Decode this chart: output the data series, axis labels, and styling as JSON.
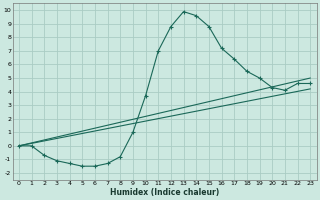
{
  "xlabel": "Humidex (Indice chaleur)",
  "background_color": "#cce8e0",
  "grid_color": "#aaccC4",
  "line_color": "#1a6858",
  "xlim": [
    -0.5,
    23.5
  ],
  "ylim": [
    -2.5,
    10.5
  ],
  "xticks": [
    0,
    1,
    2,
    3,
    4,
    5,
    6,
    7,
    8,
    9,
    10,
    11,
    12,
    13,
    14,
    15,
    16,
    17,
    18,
    19,
    20,
    21,
    22,
    23
  ],
  "yticks": [
    -2,
    -1,
    0,
    1,
    2,
    3,
    4,
    5,
    6,
    7,
    8,
    9,
    10
  ],
  "curve1_x": [
    0,
    1,
    2,
    3,
    4,
    5,
    6,
    7,
    8,
    9,
    10,
    11,
    12,
    13,
    14,
    15,
    16,
    17,
    18,
    19,
    20,
    21,
    22,
    23
  ],
  "curve1_y": [
    0.0,
    0.0,
    -0.7,
    -1.1,
    -1.3,
    -1.5,
    -1.5,
    -1.3,
    -0.8,
    1.0,
    3.7,
    7.0,
    8.8,
    9.9,
    9.6,
    8.8,
    7.2,
    6.4,
    5.5,
    5.0,
    4.3,
    4.1,
    4.6,
    4.6
  ],
  "curve2_x": [
    0,
    23
  ],
  "curve2_y": [
    0.0,
    5.0
  ],
  "curve3_x": [
    0,
    23
  ],
  "curve3_y": [
    0.0,
    4.2
  ]
}
